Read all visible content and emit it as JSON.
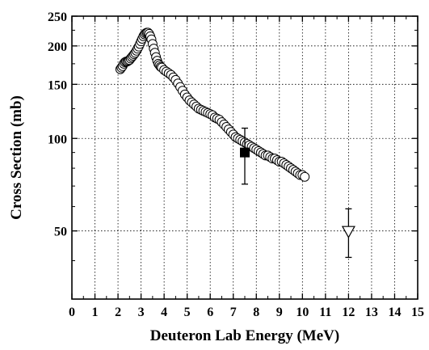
{
  "chart_data": {
    "type": "scatter",
    "title": "",
    "xlabel": "Deuteron Lab Energy (MeV)",
    "ylabel": "Cross Section (mb)",
    "xlim": [
      0,
      15
    ],
    "ylim": [
      30,
      250
    ],
    "yscale": "log",
    "grid": true,
    "grid_style": "dotted",
    "x_ticks": [
      0,
      1,
      2,
      3,
      4,
      5,
      6,
      7,
      8,
      9,
      10,
      11,
      12,
      13,
      14,
      15
    ],
    "y_ticks": [
      50,
      100,
      150,
      200,
      250
    ],
    "series": [
      {
        "marker": "open-circle",
        "color": "#000000",
        "x": [
          2.1,
          2.15,
          2.2,
          2.25,
          2.3,
          2.35,
          2.4,
          2.45,
          2.5,
          2.55,
          2.6,
          2.65,
          2.7,
          2.75,
          2.8,
          2.85,
          2.9,
          2.95,
          3.0,
          3.05,
          3.1,
          3.15,
          3.2,
          3.25,
          3.3,
          3.35,
          3.4,
          3.45,
          3.5,
          3.55,
          3.6,
          3.65,
          3.7,
          3.75,
          3.8,
          3.85,
          3.9,
          4.0,
          4.1,
          4.2,
          4.3,
          4.4,
          4.5,
          4.6,
          4.7,
          4.8,
          4.9,
          5.0,
          5.1,
          5.2,
          5.3,
          5.4,
          5.5,
          5.6,
          5.7,
          5.8,
          5.9,
          6.0,
          6.1,
          6.2,
          6.3,
          6.4,
          6.5,
          6.6,
          6.7,
          6.8,
          6.9,
          7.0,
          7.1,
          7.2,
          7.3,
          7.4,
          7.5,
          7.6,
          7.7,
          7.8,
          7.9,
          8.0,
          8.1,
          8.2,
          8.3,
          8.4,
          8.5,
          8.6,
          8.7,
          8.8,
          8.9,
          9.0,
          9.1,
          9.2,
          9.3,
          9.4,
          9.5,
          9.6,
          9.7,
          9.8,
          9.9,
          10.0,
          10.1
        ],
        "y": [
          168,
          170,
          172,
          175,
          177,
          178,
          178,
          179,
          180,
          182,
          184,
          186,
          188,
          190,
          193,
          196,
          199,
          203,
          207,
          211,
          215,
          218,
          220,
          221,
          221,
          219,
          215,
          210,
          203,
          196,
          190,
          184,
          179,
          175,
          173,
          171,
          170,
          167,
          165,
          163,
          161,
          158,
          155,
          151,
          147,
          143,
          139,
          136,
          133,
          131,
          129,
          127,
          125,
          124,
          123,
          122,
          121,
          120,
          119,
          117,
          116,
          115,
          113,
          111,
          109,
          107,
          105,
          103,
          101,
          100,
          99,
          98,
          97,
          96,
          95,
          94,
          93,
          92,
          91,
          90,
          89,
          88,
          88,
          87,
          86,
          86,
          85,
          84,
          84,
          83,
          82,
          81,
          80,
          79,
          78,
          77,
          76,
          76,
          75
        ]
      },
      {
        "marker": "filled-square",
        "color": "#000000",
        "x": [
          7.5
        ],
        "y": [
          90
        ],
        "yerr_low": [
          71
        ],
        "yerr_high": [
          108
        ]
      },
      {
        "marker": "open-triangle-down",
        "color": "#000000",
        "x": [
          12
        ],
        "y": [
          50
        ],
        "yerr_low": [
          41
        ],
        "yerr_high": [
          59
        ]
      }
    ]
  }
}
